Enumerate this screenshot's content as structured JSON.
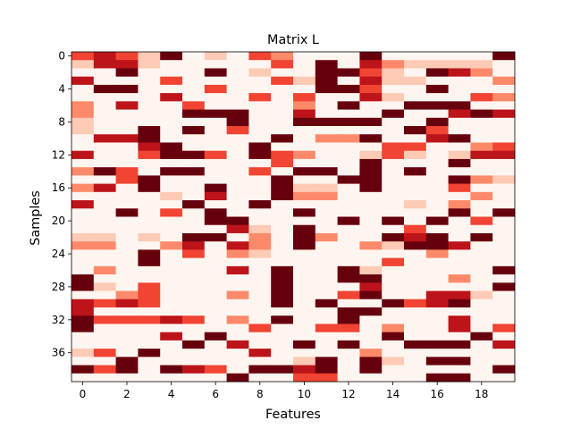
{
  "chart_data": {
    "type": "heatmap",
    "title": "Matrix L",
    "xlabel": "Features",
    "ylabel": "Samples",
    "n_rows": 40,
    "n_cols": 20,
    "colormap": "Reds",
    "vmin": 0,
    "vmax": 5,
    "x_ticks": [
      0,
      2,
      4,
      6,
      8,
      10,
      12,
      14,
      16,
      18
    ],
    "y_ticks": [
      0,
      4,
      8,
      12,
      16,
      20,
      24,
      28,
      32,
      36
    ],
    "values": [
      [
        3,
        4,
        3,
        1,
        5,
        0,
        1,
        0,
        3,
        2,
        0,
        0,
        0,
        5,
        0,
        0,
        0,
        0,
        0,
        5
      ],
      [
        1,
        4,
        4,
        1,
        0,
        0,
        0,
        0,
        0,
        3,
        0,
        5,
        0,
        4,
        2,
        1,
        1,
        1,
        1,
        0
      ],
      [
        0,
        0,
        5,
        0,
        0,
        0,
        5,
        0,
        1,
        0,
        0,
        5,
        5,
        3,
        1,
        0,
        5,
        4,
        2,
        0
      ],
      [
        4,
        0,
        0,
        0,
        3,
        0,
        0,
        0,
        0,
        3,
        1,
        5,
        0,
        4,
        1,
        1,
        0,
        0,
        0,
        2
      ],
      [
        0,
        5,
        5,
        0,
        0,
        0,
        3,
        0,
        0,
        0,
        0,
        5,
        5,
        3,
        0,
        0,
        5,
        0,
        0,
        0
      ],
      [
        0,
        0,
        0,
        0,
        4,
        0,
        0,
        0,
        3,
        0,
        3,
        0,
        0,
        4,
        1,
        0,
        0,
        0,
        3,
        2
      ],
      [
        2,
        0,
        4,
        0,
        0,
        3,
        0,
        0,
        0,
        0,
        2,
        0,
        5,
        0,
        0,
        5,
        5,
        5,
        0,
        0
      ],
      [
        2,
        0,
        0,
        0,
        0,
        5,
        5,
        5,
        0,
        0,
        4,
        0,
        0,
        0,
        5,
        0,
        0,
        4,
        5,
        4
      ],
      [
        1,
        0,
        0,
        0,
        0,
        0,
        0,
        5,
        0,
        0,
        5,
        5,
        5,
        5,
        0,
        0,
        5,
        0,
        0,
        0
      ],
      [
        1,
        0,
        0,
        5,
        0,
        5,
        0,
        3,
        0,
        0,
        0,
        0,
        0,
        0,
        0,
        5,
        3,
        0,
        0,
        0
      ],
      [
        0,
        4,
        4,
        5,
        0,
        0,
        0,
        0,
        0,
        5,
        0,
        2,
        2,
        5,
        0,
        0,
        4,
        5,
        0,
        0
      ],
      [
        0,
        0,
        0,
        4,
        5,
        0,
        0,
        0,
        5,
        0,
        0,
        0,
        0,
        0,
        3,
        3,
        0,
        0,
        2,
        3
      ],
      [
        4,
        0,
        0,
        3,
        5,
        5,
        3,
        0,
        5,
        3,
        2,
        0,
        0,
        1,
        3,
        1,
        0,
        1,
        4,
        4
      ],
      [
        0,
        0,
        0,
        0,
        0,
        0,
        0,
        0,
        0,
        3,
        0,
        0,
        0,
        5,
        0,
        0,
        0,
        5,
        0,
        0
      ],
      [
        2,
        5,
        3,
        0,
        5,
        5,
        0,
        0,
        3,
        0,
        5,
        5,
        0,
        5,
        0,
        5,
        0,
        0,
        0,
        0
      ],
      [
        0,
        0,
        3,
        5,
        0,
        0,
        0,
        0,
        0,
        5,
        0,
        0,
        5,
        5,
        0,
        0,
        0,
        5,
        2,
        1
      ],
      [
        2,
        4,
        0,
        5,
        0,
        0,
        5,
        0,
        0,
        5,
        1,
        1,
        0,
        5,
        0,
        0,
        0,
        3,
        0,
        0
      ],
      [
        0,
        0,
        0,
        0,
        1,
        0,
        4,
        0,
        0,
        5,
        2,
        2,
        0,
        0,
        0,
        0,
        0,
        0,
        2,
        0
      ],
      [
        4,
        0,
        0,
        0,
        0,
        5,
        0,
        0,
        5,
        0,
        0,
        0,
        0,
        0,
        0,
        1,
        0,
        2,
        0,
        0
      ],
      [
        0,
        0,
        5,
        0,
        3,
        0,
        5,
        0,
        0,
        0,
        5,
        0,
        0,
        0,
        0,
        0,
        0,
        5,
        0,
        5
      ],
      [
        0,
        0,
        0,
        0,
        0,
        0,
        5,
        5,
        0,
        0,
        0,
        0,
        5,
        0,
        5,
        0,
        5,
        0,
        3,
        0
      ],
      [
        0,
        0,
        0,
        0,
        0,
        0,
        0,
        4,
        1,
        0,
        5,
        0,
        0,
        0,
        0,
        3,
        0,
        0,
        0,
        0
      ],
      [
        1,
        1,
        0,
        1,
        0,
        5,
        5,
        0,
        2,
        0,
        5,
        2,
        0,
        0,
        5,
        4,
        5,
        0,
        5,
        0
      ],
      [
        2,
        2,
        0,
        0,
        2,
        4,
        0,
        4,
        2,
        0,
        5,
        0,
        0,
        2,
        1,
        5,
        5,
        4,
        0,
        0
      ],
      [
        0,
        0,
        0,
        5,
        0,
        3,
        0,
        2,
        1,
        0,
        0,
        0,
        0,
        0,
        0,
        0,
        2,
        0,
        0,
        0
      ],
      [
        0,
        0,
        0,
        5,
        0,
        0,
        0,
        0,
        0,
        0,
        0,
        0,
        0,
        0,
        3,
        0,
        0,
        0,
        0,
        0
      ],
      [
        0,
        2,
        0,
        0,
        0,
        0,
        0,
        4,
        0,
        5,
        0,
        0,
        5,
        1,
        0,
        0,
        0,
        0,
        0,
        5
      ],
      [
        5,
        0,
        0,
        0,
        0,
        0,
        0,
        0,
        0,
        5,
        0,
        0,
        5,
        5,
        0,
        0,
        0,
        2,
        0,
        0
      ],
      [
        5,
        1,
        0,
        3,
        0,
        0,
        0,
        0,
        0,
        5,
        0,
        0,
        0,
        4,
        0,
        0,
        0,
        0,
        0,
        5
      ],
      [
        0,
        0,
        2,
        3,
        0,
        0,
        0,
        2,
        0,
        5,
        0,
        0,
        3,
        5,
        0,
        0,
        4,
        4,
        1,
        0
      ],
      [
        4,
        3,
        4,
        3,
        0,
        0,
        0,
        0,
        0,
        5,
        0,
        5,
        0,
        0,
        5,
        3,
        4,
        5,
        0,
        0
      ],
      [
        4,
        0,
        0,
        0,
        0,
        0,
        0,
        0,
        0,
        0,
        0,
        0,
        5,
        5,
        0,
        0,
        0,
        0,
        0,
        0
      ],
      [
        5,
        3,
        3,
        3,
        4,
        3,
        0,
        2,
        0,
        5,
        0,
        0,
        5,
        0,
        0,
        0,
        0,
        4,
        0,
        0
      ],
      [
        5,
        0,
        0,
        0,
        0,
        0,
        0,
        0,
        3,
        0,
        0,
        3,
        3,
        0,
        2,
        0,
        0,
        4,
        0,
        3
      ],
      [
        0,
        0,
        0,
        0,
        4,
        0,
        5,
        0,
        0,
        0,
        0,
        0,
        0,
        0,
        5,
        0,
        0,
        0,
        5,
        0
      ],
      [
        0,
        0,
        0,
        0,
        0,
        5,
        0,
        4,
        0,
        0,
        5,
        0,
        5,
        0,
        0,
        5,
        5,
        5,
        0,
        4
      ],
      [
        1,
        3,
        0,
        5,
        0,
        0,
        0,
        0,
        4,
        0,
        0,
        0,
        0,
        2,
        0,
        0,
        0,
        0,
        0,
        0
      ],
      [
        0,
        0,
        5,
        0,
        0,
        0,
        0,
        0,
        0,
        0,
        1,
        5,
        0,
        5,
        1,
        0,
        5,
        5,
        0,
        0
      ],
      [
        5,
        3,
        5,
        0,
        5,
        4,
        3,
        0,
        5,
        5,
        4,
        5,
        0,
        5,
        0,
        0,
        0,
        0,
        0,
        5
      ],
      [
        0,
        0,
        0,
        0,
        0,
        0,
        0,
        5,
        0,
        0,
        3,
        3,
        0,
        0,
        0,
        0,
        5,
        5,
        0,
        0
      ]
    ]
  }
}
